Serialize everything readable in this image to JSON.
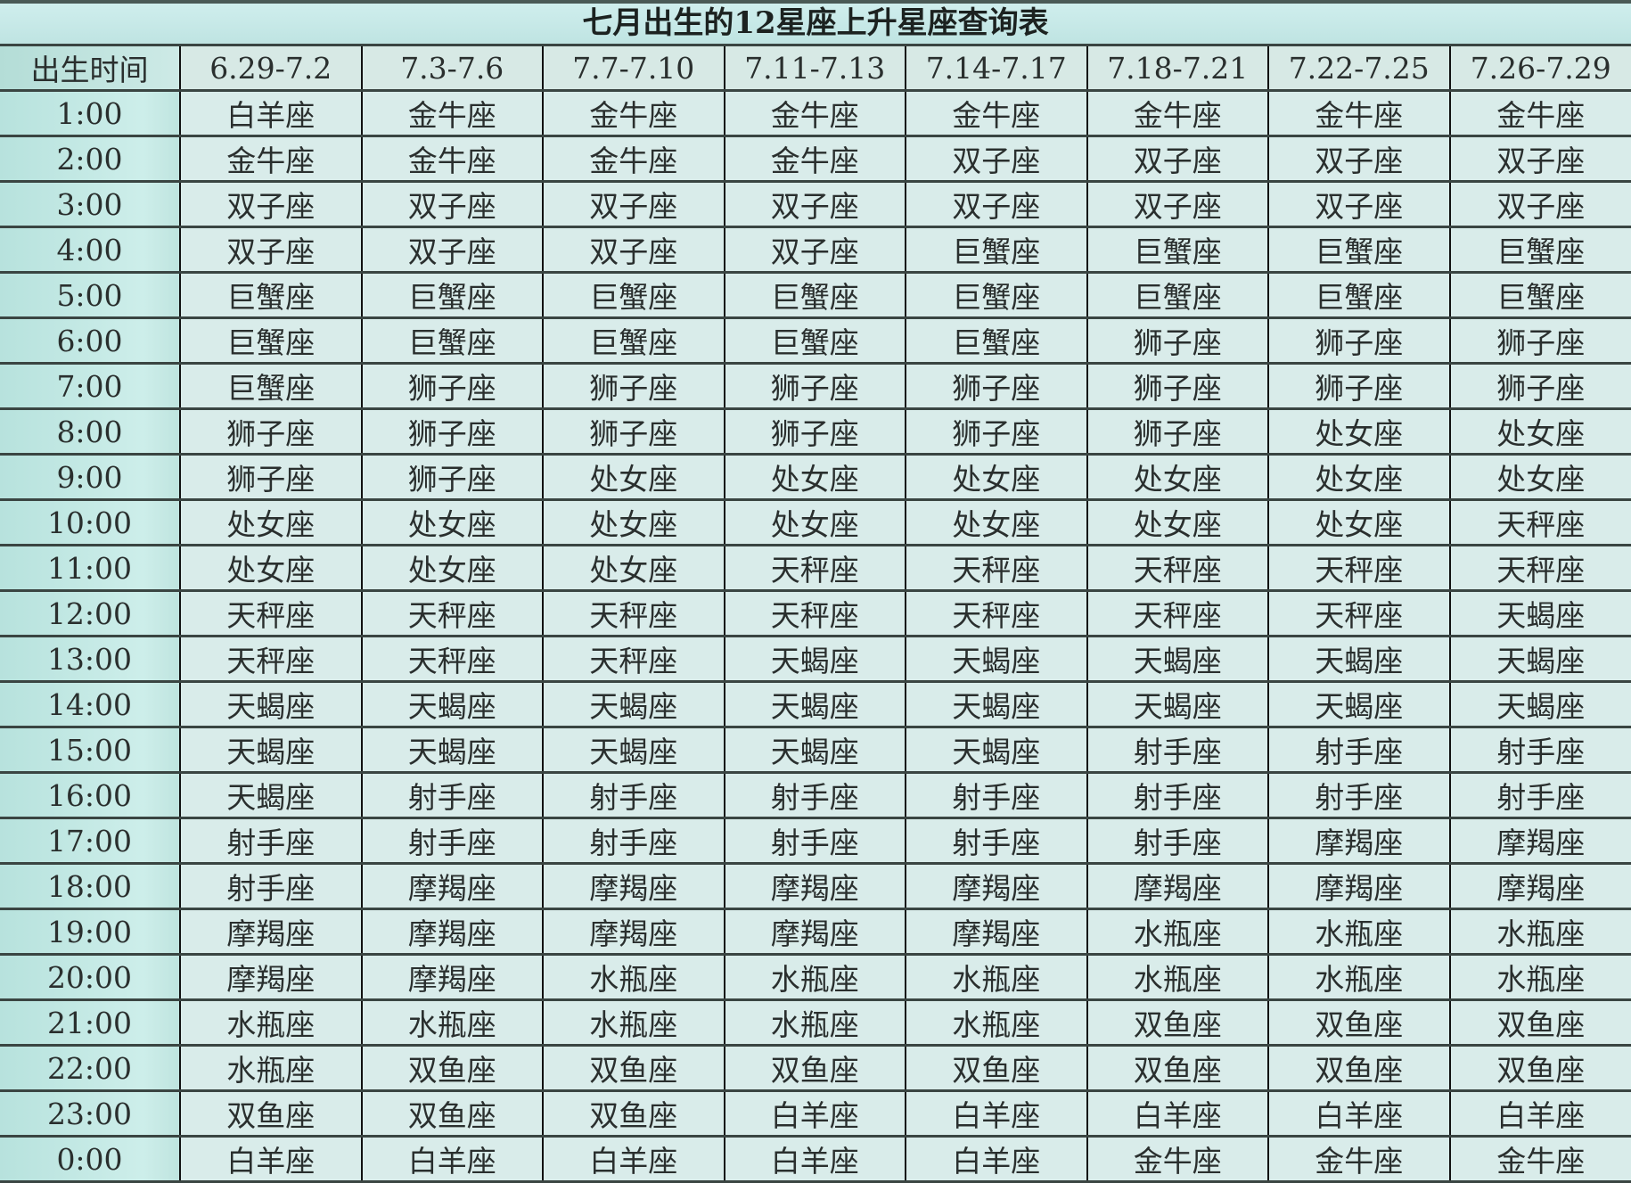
{
  "title": "七月出生的12星座上升星座查询表",
  "header": {
    "time_label": "出生时间",
    "columns": [
      "6.29-7.2",
      "7.3-7.6",
      "7.7-7.10",
      "7.11-7.13",
      "7.14-7.17",
      "7.18-7.21",
      "7.22-7.25",
      "7.26-7.29"
    ]
  },
  "rows": [
    {
      "time": "1:00",
      "signs": [
        "白羊座",
        "金牛座",
        "金牛座",
        "金牛座",
        "金牛座",
        "金牛座",
        "金牛座",
        "金牛座"
      ]
    },
    {
      "time": "2:00",
      "signs": [
        "金牛座",
        "金牛座",
        "金牛座",
        "金牛座",
        "双子座",
        "双子座",
        "双子座",
        "双子座"
      ]
    },
    {
      "time": "3:00",
      "signs": [
        "双子座",
        "双子座",
        "双子座",
        "双子座",
        "双子座",
        "双子座",
        "双子座",
        "双子座"
      ]
    },
    {
      "time": "4:00",
      "signs": [
        "双子座",
        "双子座",
        "双子座",
        "双子座",
        "巨蟹座",
        "巨蟹座",
        "巨蟹座",
        "巨蟹座"
      ]
    },
    {
      "time": "5:00",
      "signs": [
        "巨蟹座",
        "巨蟹座",
        "巨蟹座",
        "巨蟹座",
        "巨蟹座",
        "巨蟹座",
        "巨蟹座",
        "巨蟹座"
      ]
    },
    {
      "time": "6:00",
      "signs": [
        "巨蟹座",
        "巨蟹座",
        "巨蟹座",
        "巨蟹座",
        "巨蟹座",
        "狮子座",
        "狮子座",
        "狮子座"
      ]
    },
    {
      "time": "7:00",
      "signs": [
        "巨蟹座",
        "狮子座",
        "狮子座",
        "狮子座",
        "狮子座",
        "狮子座",
        "狮子座",
        "狮子座"
      ]
    },
    {
      "time": "8:00",
      "signs": [
        "狮子座",
        "狮子座",
        "狮子座",
        "狮子座",
        "狮子座",
        "狮子座",
        "处女座",
        "处女座"
      ]
    },
    {
      "time": "9:00",
      "signs": [
        "狮子座",
        "狮子座",
        "处女座",
        "处女座",
        "处女座",
        "处女座",
        "处女座",
        "处女座"
      ]
    },
    {
      "time": "10:00",
      "signs": [
        "处女座",
        "处女座",
        "处女座",
        "处女座",
        "处女座",
        "处女座",
        "处女座",
        "天秤座"
      ]
    },
    {
      "time": "11:00",
      "signs": [
        "处女座",
        "处女座",
        "处女座",
        "天秤座",
        "天秤座",
        "天秤座",
        "天秤座",
        "天秤座"
      ]
    },
    {
      "time": "12:00",
      "signs": [
        "天秤座",
        "天秤座",
        "天秤座",
        "天秤座",
        "天秤座",
        "天秤座",
        "天秤座",
        "天蝎座"
      ]
    },
    {
      "time": "13:00",
      "signs": [
        "天秤座",
        "天秤座",
        "天秤座",
        "天蝎座",
        "天蝎座",
        "天蝎座",
        "天蝎座",
        "天蝎座"
      ]
    },
    {
      "time": "14:00",
      "signs": [
        "天蝎座",
        "天蝎座",
        "天蝎座",
        "天蝎座",
        "天蝎座",
        "天蝎座",
        "天蝎座",
        "天蝎座"
      ]
    },
    {
      "time": "15:00",
      "signs": [
        "天蝎座",
        "天蝎座",
        "天蝎座",
        "天蝎座",
        "天蝎座",
        "射手座",
        "射手座",
        "射手座"
      ]
    },
    {
      "time": "16:00",
      "signs": [
        "天蝎座",
        "射手座",
        "射手座",
        "射手座",
        "射手座",
        "射手座",
        "射手座",
        "射手座"
      ]
    },
    {
      "time": "17:00",
      "signs": [
        "射手座",
        "射手座",
        "射手座",
        "射手座",
        "射手座",
        "射手座",
        "摩羯座",
        "摩羯座"
      ]
    },
    {
      "time": "18:00",
      "signs": [
        "射手座",
        "摩羯座",
        "摩羯座",
        "摩羯座",
        "摩羯座",
        "摩羯座",
        "摩羯座",
        "摩羯座"
      ]
    },
    {
      "time": "19:00",
      "signs": [
        "摩羯座",
        "摩羯座",
        "摩羯座",
        "摩羯座",
        "摩羯座",
        "水瓶座",
        "水瓶座",
        "水瓶座"
      ]
    },
    {
      "time": "20:00",
      "signs": [
        "摩羯座",
        "摩羯座",
        "水瓶座",
        "水瓶座",
        "水瓶座",
        "水瓶座",
        "水瓶座",
        "水瓶座"
      ]
    },
    {
      "time": "21:00",
      "signs": [
        "水瓶座",
        "水瓶座",
        "水瓶座",
        "水瓶座",
        "水瓶座",
        "双鱼座",
        "双鱼座",
        "双鱼座"
      ]
    },
    {
      "time": "22:00",
      "signs": [
        "水瓶座",
        "双鱼座",
        "双鱼座",
        "双鱼座",
        "双鱼座",
        "双鱼座",
        "双鱼座",
        "双鱼座"
      ]
    },
    {
      "time": "23:00",
      "signs": [
        "双鱼座",
        "双鱼座",
        "双鱼座",
        "白羊座",
        "白羊座",
        "白羊座",
        "白羊座",
        "白羊座"
      ]
    },
    {
      "time": "0:00",
      "signs": [
        "白羊座",
        "白羊座",
        "白羊座",
        "白羊座",
        "白羊座",
        "金牛座",
        "金牛座",
        "金牛座"
      ]
    }
  ]
}
